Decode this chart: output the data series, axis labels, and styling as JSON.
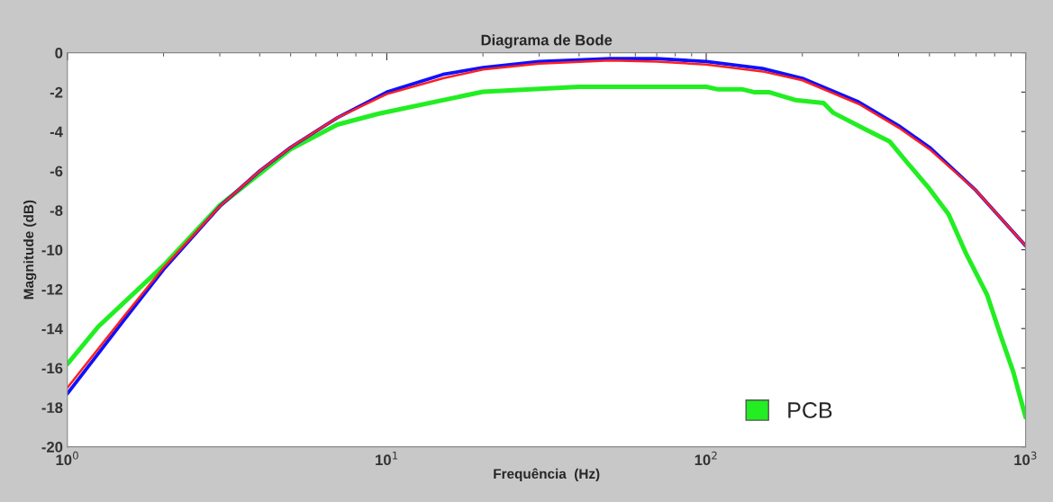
{
  "chart_data": {
    "type": "line",
    "title": "Diagrama de Bode",
    "xlabel": "Frequência  (Hz)",
    "ylabel": "Magnitude (dB)",
    "log": "x",
    "xlim": [
      1,
      1000
    ],
    "xticks": [
      {
        "value": 1,
        "label": "10$^{0}$"
      },
      {
        "value": 10,
        "label": "10$^{1}$"
      },
      {
        "value": 100,
        "label": "10$^{2}$"
      },
      {
        "value": 1000,
        "label": "10$^{3}$"
      }
    ],
    "ylim": [
      -20,
      0
    ],
    "yticks": [
      -20,
      -18,
      -16,
      -14,
      -12,
      -10,
      -8,
      -6,
      -4,
      -2,
      0
    ],
    "grid": false,
    "legend": "bottom right",
    "series": [
      {
        "name": "PCB",
        "color": "#22ee22",
        "x": [
          1,
          1.25,
          2,
          3,
          5,
          7,
          9.4,
          20,
          40,
          100,
          109,
          130,
          141,
          157,
          190,
          233,
          250,
          316,
          375,
          427,
          494,
          574,
          651,
          758,
          837,
          915,
          1000
        ],
        "values": [
          -15.8,
          -13.9,
          -10.8,
          -7.75,
          -4.9,
          -3.65,
          -3.1,
          -1.98,
          -1.73,
          -1.73,
          -1.86,
          -1.86,
          -2.0,
          -2.0,
          -2.4,
          -2.55,
          -3.05,
          -3.9,
          -4.5,
          -5.6,
          -6.8,
          -8.2,
          -10.2,
          -12.3,
          -14.4,
          -16.2,
          -18.5
        ]
      },
      {
        "color": "#1010ff",
        "x": [
          1,
          1.5,
          2,
          3,
          4,
          5,
          7,
          10,
          15,
          20,
          30,
          50,
          70,
          100,
          150,
          200,
          300,
          400,
          500,
          700,
          1000
        ],
        "values": [
          -17.3,
          -13.6,
          -11.0,
          -7.8,
          -6.0,
          -4.8,
          -3.3,
          -2.0,
          -1.1,
          -0.75,
          -0.45,
          -0.3,
          -0.3,
          -0.45,
          -0.8,
          -1.3,
          -2.5,
          -3.7,
          -4.8,
          -7.0,
          -9.8
        ]
      },
      {
        "color": "#ff2020",
        "x": [
          1,
          1.5,
          2,
          3,
          4,
          5,
          7,
          10,
          15,
          20,
          30,
          50,
          70,
          100,
          150,
          200,
          300,
          400,
          500,
          700,
          1000
        ],
        "values": [
          -17.0,
          -13.4,
          -10.9,
          -7.8,
          -6.0,
          -4.8,
          -3.3,
          -2.1,
          -1.3,
          -0.85,
          -0.55,
          -0.4,
          -0.45,
          -0.6,
          -0.95,
          -1.4,
          -2.6,
          -3.8,
          -4.9,
          -7.0,
          -9.8
        ]
      }
    ]
  }
}
